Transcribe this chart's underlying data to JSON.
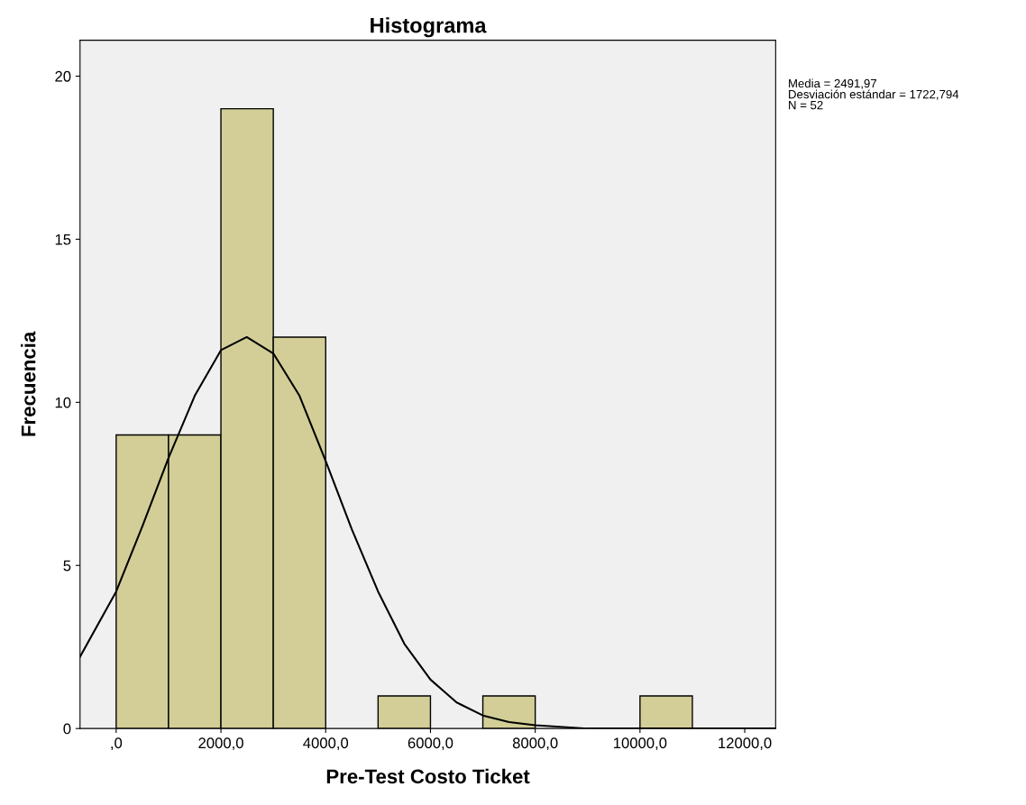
{
  "chart_data": {
    "type": "histogram",
    "title": "Histograma",
    "xlabel": "Pre-Test Costo Ticket",
    "ylabel": "Frecuencia",
    "bins": [
      0,
      1000,
      2000,
      3000,
      4000,
      5000,
      6000,
      7000,
      8000,
      9000,
      10000,
      11000
    ],
    "values": [
      9,
      9,
      19,
      12,
      0,
      1,
      0,
      1,
      0,
      0,
      1
    ],
    "color": "#d3ce97",
    "series": [
      {
        "type": "line",
        "color": "#000000",
        "x": [
          -690,
          0,
          500,
          1000,
          1500,
          2000,
          2492,
          3000,
          3500,
          4000,
          4500,
          5000,
          5500,
          6000,
          6500,
          7000,
          7500,
          8000,
          9000,
          10000,
          12590
        ],
        "values": [
          2.2,
          4.2,
          6.2,
          8.3,
          10.2,
          11.6,
          12.0,
          11.5,
          10.2,
          8.2,
          6.1,
          4.2,
          2.6,
          1.5,
          0.8,
          0.4,
          0.2,
          0.1,
          0,
          0,
          0
        ]
      }
    ],
    "xlim": [
      -690,
      12590
    ],
    "ylim": [
      0,
      21.1
    ],
    "xticks": [
      {
        "value": 0,
        "label": ",0"
      },
      {
        "value": 2000,
        "label": "2000,0"
      },
      {
        "value": 4000,
        "label": "4000,0"
      },
      {
        "value": 6000,
        "label": "6000,0"
      },
      {
        "value": 8000,
        "label": "8000,0"
      },
      {
        "value": 10000,
        "label": "10000,0"
      },
      {
        "value": 12000,
        "label": "12000,0"
      }
    ],
    "yticks": [
      0,
      5,
      10,
      15,
      20
    ],
    "grid": false,
    "legend": false,
    "annotations": [
      "Media = 2491,97",
      "Desviación estándar = 1722,794",
      "N = 52"
    ]
  }
}
